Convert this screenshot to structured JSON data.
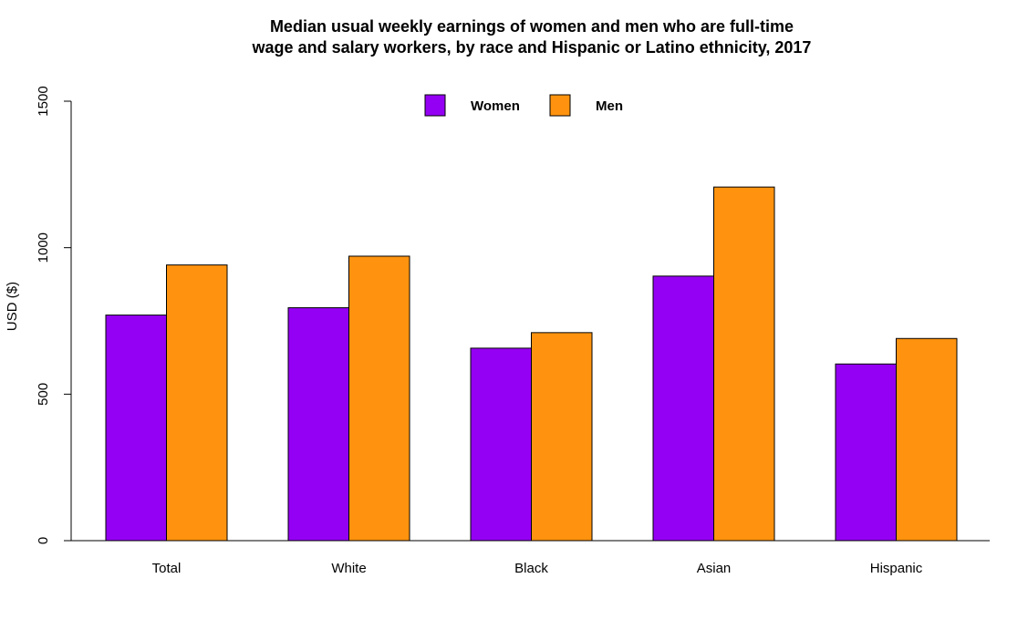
{
  "chart_data": {
    "type": "bar",
    "title_lines": [
      "Median usual weekly earnings of women and men who are full-time",
      "wage and salary workers, by race and Hispanic or Latino ethnicity, 2017"
    ],
    "xlabel": "",
    "ylabel": "USD ($)",
    "ylim": [
      0,
      1500
    ],
    "yticks": [
      "0",
      "500",
      "1000",
      "1500"
    ],
    "grid": false,
    "legend_position": "top-center",
    "categories": [
      "Total",
      "White",
      "Black",
      "Asian",
      "Hispanic"
    ],
    "series": [
      {
        "name": "Women",
        "color": "#9400F3",
        "values": [
          770,
          795,
          657,
          903,
          603
        ]
      },
      {
        "name": "Men",
        "color": "#FF930F",
        "values": [
          941,
          971,
          710,
          1207,
          690
        ]
      }
    ]
  }
}
